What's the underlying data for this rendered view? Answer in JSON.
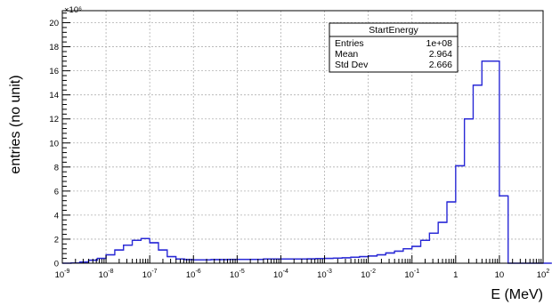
{
  "chart_data": {
    "type": "histogram",
    "x_scale": "log",
    "x_range": [
      1e-09,
      100
    ],
    "xlabel": "E (MeV)",
    "ylabel": "entries (no unit)",
    "y_multiplier": "×10⁶",
    "ylim": [
      0,
      21
    ],
    "grid": true,
    "x_ticks": [
      {
        "base": "10",
        "exp": "-9"
      },
      {
        "base": "10",
        "exp": "-8"
      },
      {
        "base": "10",
        "exp": "-7"
      },
      {
        "base": "10",
        "exp": "-6"
      },
      {
        "base": "10",
        "exp": "-5"
      },
      {
        "base": "10",
        "exp": "-4"
      },
      {
        "base": "10",
        "exp": "-3"
      },
      {
        "base": "10",
        "exp": "-2"
      },
      {
        "base": "10",
        "exp": "-1"
      },
      {
        "base": "1",
        "exp": ""
      },
      {
        "base": "10",
        "exp": ""
      },
      {
        "base": "10",
        "exp": "2"
      }
    ],
    "y_ticks": [
      "0",
      "2",
      "4",
      "6",
      "8",
      "10",
      "12",
      "14",
      "16",
      "18",
      "20"
    ],
    "bins_per_decade": 5,
    "bin_start_exponent": -9,
    "values": [
      0,
      0.02,
      0.1,
      0.25,
      0.4,
      0.7,
      1.1,
      1.5,
      1.9,
      2.05,
      1.7,
      1.1,
      0.55,
      0.35,
      0.3,
      0.28,
      0.28,
      0.3,
      0.3,
      0.32,
      0.32,
      0.32,
      0.32,
      0.35,
      0.35,
      0.35,
      0.35,
      0.35,
      0.36,
      0.38,
      0.4,
      0.42,
      0.45,
      0.5,
      0.55,
      0.6,
      0.7,
      0.85,
      1.0,
      1.2,
      1.4,
      1.9,
      2.5,
      3.4,
      5.1,
      8.1,
      12.0,
      14.8,
      16.8,
      16.8,
      5.6,
      0,
      0,
      0,
      0,
      0
    ],
    "series_color": "#2929d6",
    "stats_box": {
      "title": "StartEnergy",
      "rows": [
        {
          "label": "Entries",
          "value": "1e+08"
        },
        {
          "label": "Mean",
          "value": "2.964"
        },
        {
          "label": "Std Dev",
          "value": "2.666"
        }
      ],
      "placement": "top-right"
    }
  }
}
